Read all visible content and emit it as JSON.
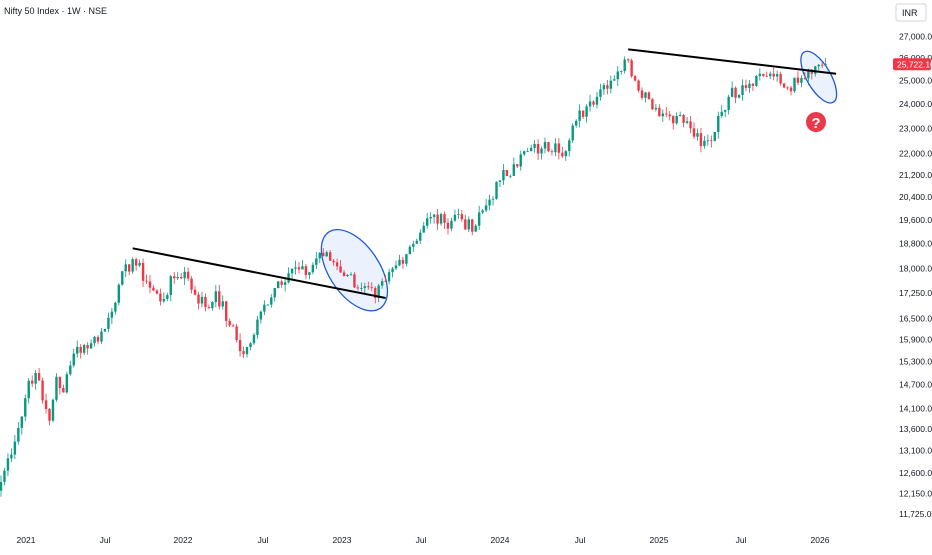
{
  "header": {
    "title": "Nifty 50 Index · 1W · NSE"
  },
  "currency_box": {
    "label": "INR"
  },
  "last_price": {
    "label": "25,722.10",
    "color": "#f23645"
  },
  "colors": {
    "up": "#089981",
    "down": "#f23645",
    "trendline": "#000000",
    "ellipse_stroke": "#1e5bd7",
    "ellipse_fill": "#e6eefc",
    "question_mark": "#e83a4a"
  },
  "annotations": {
    "question_mark": "?"
  },
  "chart_data": {
    "type": "candlestick",
    "title": "Nifty 50 Index · 1W · NSE",
    "y_scale": "log",
    "ylim": [
      11600,
      27600
    ],
    "x_tick_labels": [
      "2021",
      "Jul",
      "2022",
      "Jul",
      "2023",
      "Jul",
      "2024",
      "Jul",
      "2025",
      "Jul",
      "2026"
    ],
    "y_tick_labels": [
      "27,000.00",
      "26,000.00",
      "25,000.00",
      "24,000.00",
      "23,000.00",
      "22,000.00",
      "21,200.00",
      "20,400.00",
      "19,600.00",
      "18,800.00",
      "18,000.00",
      "17,250.00",
      "16,500.00",
      "15,900.00",
      "15,300.00",
      "14,700.00",
      "14,100.00",
      "13,600.00",
      "13,100.00",
      "12,600.00",
      "12,150.00",
      "11,725.00"
    ],
    "last_price": 25722.1,
    "anchors": [
      {
        "w": 0,
        "c": 12400
      },
      {
        "w": 6,
        "c": 13900
      },
      {
        "w": 8,
        "c": 14800
      },
      {
        "w": 10,
        "c": 15000
      },
      {
        "w": 12,
        "c": 14300
      },
      {
        "w": 14,
        "c": 13800
      },
      {
        "w": 16,
        "c": 14900
      },
      {
        "w": 18,
        "c": 14500
      },
      {
        "w": 20,
        "c": 15200
      },
      {
        "w": 22,
        "c": 15700
      },
      {
        "w": 26,
        "c": 15800
      },
      {
        "w": 30,
        "c": 16200
      },
      {
        "w": 34,
        "c": 17500
      },
      {
        "w": 38,
        "c": 18300
      },
      {
        "w": 42,
        "c": 17600
      },
      {
        "w": 46,
        "c": 17000
      },
      {
        "w": 50,
        "c": 17700
      },
      {
        "w": 53,
        "c": 17900
      },
      {
        "w": 56,
        "c": 17200
      },
      {
        "w": 60,
        "c": 16800
      },
      {
        "w": 62,
        "c": 17300
      },
      {
        "w": 66,
        "c": 16300
      },
      {
        "w": 70,
        "c": 15500
      },
      {
        "w": 72,
        "c": 15800
      },
      {
        "w": 76,
        "c": 16900
      },
      {
        "w": 80,
        "c": 17600
      },
      {
        "w": 84,
        "c": 18000
      },
      {
        "w": 88,
        "c": 17800
      },
      {
        "w": 92,
        "c": 18500
      },
      {
        "w": 96,
        "c": 18200
      },
      {
        "w": 100,
        "c": 17800
      },
      {
        "w": 104,
        "c": 17400
      },
      {
        "w": 108,
        "c": 17100
      },
      {
        "w": 111,
        "c": 17600
      },
      {
        "w": 114,
        "c": 18100
      },
      {
        "w": 118,
        "c": 18700
      },
      {
        "w": 122,
        "c": 19400
      },
      {
        "w": 124,
        "c": 19700
      },
      {
        "w": 128,
        "c": 19500
      },
      {
        "w": 132,
        "c": 19800
      },
      {
        "w": 136,
        "c": 19200
      },
      {
        "w": 140,
        "c": 20100
      },
      {
        "w": 144,
        "c": 21000
      },
      {
        "w": 148,
        "c": 21600
      },
      {
        "w": 152,
        "c": 22100
      },
      {
        "w": 156,
        "c": 22200
      },
      {
        "w": 160,
        "c": 22400
      },
      {
        "w": 163,
        "c": 22100
      },
      {
        "w": 166,
        "c": 23300
      },
      {
        "w": 170,
        "c": 24100
      },
      {
        "w": 174,
        "c": 24800
      },
      {
        "w": 178,
        "c": 25400
      },
      {
        "w": 181,
        "c": 25900
      },
      {
        "w": 183,
        "c": 25000
      },
      {
        "w": 187,
        "c": 24200
      },
      {
        "w": 191,
        "c": 23600
      },
      {
        "w": 195,
        "c": 23500
      },
      {
        "w": 199,
        "c": 23000
      },
      {
        "w": 202,
        "c": 22300
      },
      {
        "w": 205,
        "c": 22500
      },
      {
        "w": 207,
        "c": 23500
      },
      {
        "w": 210,
        "c": 24300
      },
      {
        "w": 214,
        "c": 24800
      },
      {
        "w": 218,
        "c": 25200
      },
      {
        "w": 222,
        "c": 25300
      },
      {
        "w": 226,
        "c": 24700
      },
      {
        "w": 230,
        "c": 24900
      },
      {
        "w": 234,
        "c": 25300
      },
      {
        "w": 236,
        "c": 25700
      },
      {
        "w": 238,
        "c": 25722.1
      }
    ],
    "trendlines": [
      {
        "from": {
          "w": 38,
          "price": 18650
        },
        "to": {
          "w": 111,
          "price": 17100
        }
      },
      {
        "from": {
          "w": 181,
          "price": 26400
        },
        "to": {
          "w": 241,
          "price": 25300
        }
      }
    ],
    "ellipses": [
      {
        "center": {
          "w": 102,
          "price": 17950
        },
        "rx": 25,
        "ry": 46,
        "rotate": -34
      },
      {
        "center": {
          "w": 236,
          "price": 25150
        },
        "rx": 12,
        "ry": 29,
        "rotate": -30
      }
    ],
    "grid": false,
    "legend": "none"
  }
}
